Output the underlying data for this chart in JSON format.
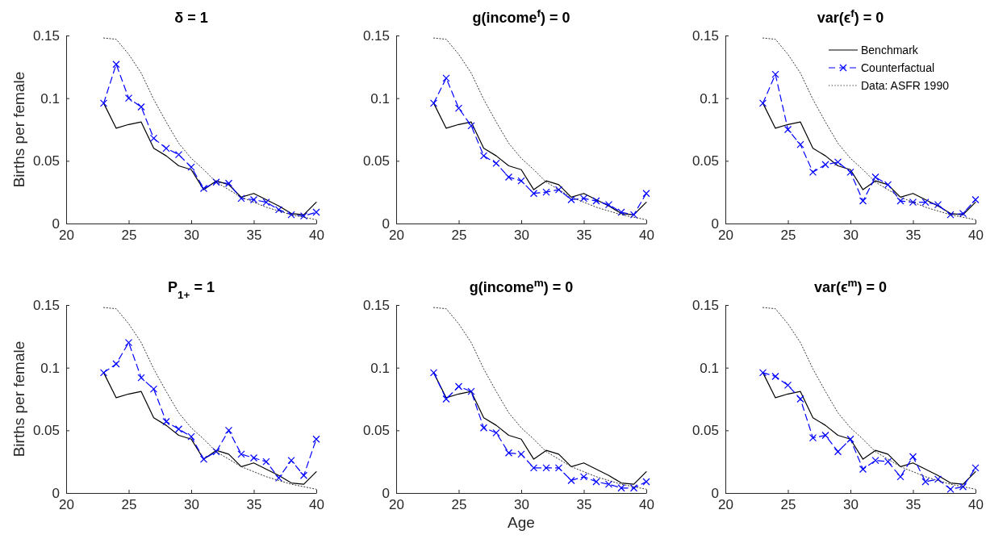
{
  "chart_data": [
    {
      "type": "line",
      "title": "δ = 1",
      "ylabel": "Births per female",
      "x": [
        23,
        24,
        25,
        26,
        27,
        28,
        29,
        30,
        31,
        32,
        33,
        34,
        35,
        36,
        37,
        38,
        39,
        40
      ],
      "xlim": [
        20,
        40
      ],
      "xticks": [
        20,
        25,
        30,
        35,
        40
      ],
      "ylim": [
        0,
        0.15
      ],
      "yticks": [
        0,
        0.05,
        0.1,
        0.15
      ],
      "grid": false,
      "legend": false,
      "series": [
        {
          "color": "#000000",
          "line_style": "solid",
          "marker": "none",
          "values": [
            0.096,
            0.076,
            0.079,
            0.081,
            0.06,
            0.054,
            0.046,
            0.043,
            0.027,
            0.034,
            0.031,
            0.021,
            0.024,
            0.019,
            0.014,
            0.008,
            0.007,
            0.017
          ]
        },
        {
          "color": "#0000ff",
          "line_style": "dashed",
          "marker": "cross",
          "values": [
            0.096,
            0.127,
            0.1,
            0.093,
            0.068,
            0.06,
            0.055,
            0.045,
            0.028,
            0.033,
            0.032,
            0.02,
            0.019,
            0.017,
            0.011,
            0.007,
            0.006,
            0.009
          ]
        },
        {
          "color": "#333333",
          "line_style": "dotted",
          "marker": "none",
          "values": [
            0.148,
            0.147,
            0.135,
            0.12,
            0.099,
            0.081,
            0.064,
            0.052,
            0.043,
            0.033,
            0.027,
            0.021,
            0.017,
            0.013,
            0.01,
            0.007,
            0.005,
            0.003
          ]
        }
      ]
    },
    {
      "type": "line",
      "title": "g(income$^{f}$) = 0",
      "x": [
        23,
        24,
        25,
        26,
        27,
        28,
        29,
        30,
        31,
        32,
        33,
        34,
        35,
        36,
        37,
        38,
        39,
        40
      ],
      "xlim": [
        20,
        40
      ],
      "xticks": [
        20,
        25,
        30,
        35,
        40
      ],
      "ylim": [
        0,
        0.15
      ],
      "yticks": [
        0,
        0.05,
        0.1,
        0.15
      ],
      "grid": false,
      "legend": false,
      "series": [
        {
          "color": "#000000",
          "line_style": "solid",
          "marker": "none",
          "values": [
            0.096,
            0.076,
            0.079,
            0.081,
            0.06,
            0.054,
            0.046,
            0.043,
            0.027,
            0.034,
            0.031,
            0.021,
            0.024,
            0.019,
            0.014,
            0.008,
            0.007,
            0.017
          ]
        },
        {
          "color": "#0000ff",
          "line_style": "dashed",
          "marker": "cross",
          "values": [
            0.096,
            0.116,
            0.092,
            0.078,
            0.054,
            0.048,
            0.037,
            0.034,
            0.024,
            0.025,
            0.027,
            0.019,
            0.02,
            0.018,
            0.015,
            0.009,
            0.007,
            0.024
          ]
        },
        {
          "color": "#333333",
          "line_style": "dotted",
          "marker": "none",
          "values": [
            0.148,
            0.147,
            0.135,
            0.12,
            0.099,
            0.081,
            0.064,
            0.052,
            0.043,
            0.033,
            0.027,
            0.021,
            0.017,
            0.013,
            0.01,
            0.007,
            0.005,
            0.003
          ]
        }
      ]
    },
    {
      "type": "line",
      "title": "var(ϵ$^{f}$) = 0",
      "x": [
        23,
        24,
        25,
        26,
        27,
        28,
        29,
        30,
        31,
        32,
        33,
        34,
        35,
        36,
        37,
        38,
        39,
        40
      ],
      "xlim": [
        20,
        40
      ],
      "xticks": [
        20,
        25,
        30,
        35,
        40
      ],
      "ylim": [
        0,
        0.15
      ],
      "yticks": [
        0,
        0.05,
        0.1,
        0.15
      ],
      "grid": false,
      "legend": "top right",
      "series": [
        {
          "name": "Benchmark",
          "color": "#000000",
          "line_style": "solid",
          "marker": "none",
          "values": [
            0.096,
            0.076,
            0.079,
            0.081,
            0.06,
            0.054,
            0.046,
            0.043,
            0.027,
            0.034,
            0.031,
            0.021,
            0.024,
            0.019,
            0.014,
            0.008,
            0.007,
            0.017
          ]
        },
        {
          "name": "Counterfactual",
          "color": "#0000ff",
          "line_style": "dashed",
          "marker": "cross",
          "values": [
            0.096,
            0.119,
            0.075,
            0.063,
            0.041,
            0.047,
            0.049,
            0.041,
            0.018,
            0.037,
            0.031,
            0.018,
            0.017,
            0.017,
            0.015,
            0.007,
            0.008,
            0.019
          ]
        },
        {
          "name": "Data: ASFR 1990",
          "color": "#333333",
          "line_style": "dotted",
          "marker": "none",
          "values": [
            0.148,
            0.147,
            0.135,
            0.12,
            0.099,
            0.081,
            0.064,
            0.052,
            0.043,
            0.033,
            0.027,
            0.021,
            0.017,
            0.013,
            0.01,
            0.007,
            0.005,
            0.003
          ]
        }
      ]
    },
    {
      "type": "line",
      "title": "P$_{1+}$ = 1",
      "ylabel": "Births per female",
      "x": [
        23,
        24,
        25,
        26,
        27,
        28,
        29,
        30,
        31,
        32,
        33,
        34,
        35,
        36,
        37,
        38,
        39,
        40
      ],
      "xlim": [
        20,
        40
      ],
      "xticks": [
        20,
        25,
        30,
        35,
        40
      ],
      "ylim": [
        0,
        0.15
      ],
      "yticks": [
        0,
        0.05,
        0.1,
        0.15
      ],
      "grid": false,
      "legend": false,
      "series": [
        {
          "color": "#000000",
          "line_style": "solid",
          "marker": "none",
          "values": [
            0.096,
            0.076,
            0.079,
            0.081,
            0.06,
            0.054,
            0.046,
            0.043,
            0.027,
            0.034,
            0.031,
            0.021,
            0.024,
            0.019,
            0.014,
            0.008,
            0.007,
            0.017
          ]
        },
        {
          "color": "#0000ff",
          "line_style": "dashed",
          "marker": "cross",
          "values": [
            0.096,
            0.103,
            0.12,
            0.092,
            0.083,
            0.057,
            0.051,
            0.045,
            0.027,
            0.033,
            0.05,
            0.031,
            0.028,
            0.025,
            0.012,
            0.026,
            0.014,
            0.043
          ]
        },
        {
          "color": "#333333",
          "line_style": "dotted",
          "marker": "none",
          "values": [
            0.148,
            0.147,
            0.135,
            0.12,
            0.099,
            0.081,
            0.064,
            0.052,
            0.043,
            0.033,
            0.027,
            0.021,
            0.017,
            0.013,
            0.01,
            0.007,
            0.005,
            0.003
          ]
        }
      ]
    },
    {
      "type": "line",
      "title": "g(income$^{m}$) = 0",
      "xlabel": "Age",
      "x": [
        23,
        24,
        25,
        26,
        27,
        28,
        29,
        30,
        31,
        32,
        33,
        34,
        35,
        36,
        37,
        38,
        39,
        40
      ],
      "xlim": [
        20,
        40
      ],
      "xticks": [
        20,
        25,
        30,
        35,
        40
      ],
      "ylim": [
        0,
        0.15
      ],
      "yticks": [
        0,
        0.05,
        0.1,
        0.15
      ],
      "grid": false,
      "legend": false,
      "series": [
        {
          "color": "#000000",
          "line_style": "solid",
          "marker": "none",
          "values": [
            0.096,
            0.076,
            0.079,
            0.081,
            0.06,
            0.054,
            0.046,
            0.043,
            0.027,
            0.034,
            0.031,
            0.021,
            0.024,
            0.019,
            0.014,
            0.008,
            0.007,
            0.017
          ]
        },
        {
          "color": "#0000ff",
          "line_style": "dashed",
          "marker": "cross",
          "values": [
            0.096,
            0.075,
            0.085,
            0.081,
            0.052,
            0.048,
            0.032,
            0.031,
            0.02,
            0.02,
            0.02,
            0.01,
            0.013,
            0.009,
            0.007,
            0.004,
            0.004,
            0.009
          ]
        },
        {
          "color": "#333333",
          "line_style": "dotted",
          "marker": "none",
          "values": [
            0.148,
            0.147,
            0.135,
            0.12,
            0.099,
            0.081,
            0.064,
            0.052,
            0.043,
            0.033,
            0.027,
            0.021,
            0.017,
            0.013,
            0.01,
            0.007,
            0.005,
            0.003
          ]
        }
      ]
    },
    {
      "type": "line",
      "title": "var(ϵ$^{m}$) = 0",
      "x": [
        23,
        24,
        25,
        26,
        27,
        28,
        29,
        30,
        31,
        32,
        33,
        34,
        35,
        36,
        37,
        38,
        39,
        40
      ],
      "xlim": [
        20,
        40
      ],
      "xticks": [
        20,
        25,
        30,
        35,
        40
      ],
      "ylim": [
        0,
        0.15
      ],
      "yticks": [
        0,
        0.05,
        0.1,
        0.15
      ],
      "grid": false,
      "legend": false,
      "series": [
        {
          "color": "#000000",
          "line_style": "solid",
          "marker": "none",
          "values": [
            0.096,
            0.076,
            0.079,
            0.081,
            0.06,
            0.054,
            0.046,
            0.043,
            0.027,
            0.034,
            0.031,
            0.021,
            0.024,
            0.019,
            0.014,
            0.008,
            0.007,
            0.017
          ]
        },
        {
          "color": "#0000ff",
          "line_style": "dashed",
          "marker": "cross",
          "values": [
            0.096,
            0.093,
            0.086,
            0.075,
            0.044,
            0.046,
            0.033,
            0.043,
            0.019,
            0.026,
            0.025,
            0.013,
            0.029,
            0.009,
            0.011,
            0.003,
            0.005,
            0.02
          ]
        },
        {
          "color": "#333333",
          "line_style": "dotted",
          "marker": "none",
          "values": [
            0.148,
            0.147,
            0.135,
            0.12,
            0.099,
            0.081,
            0.064,
            0.052,
            0.043,
            0.033,
            0.027,
            0.021,
            0.017,
            0.013,
            0.01,
            0.007,
            0.005,
            0.003
          ]
        }
      ]
    }
  ]
}
